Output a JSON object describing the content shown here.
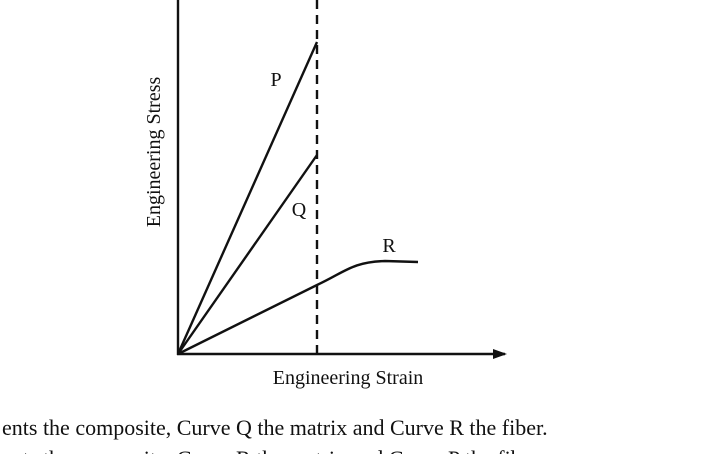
{
  "diagram": {
    "y_axis_label": "Engineering Stress",
    "x_axis_label": "Engineering Strain",
    "curves": [
      {
        "label": "P"
      },
      {
        "label": "Q"
      },
      {
        "label": "R"
      }
    ],
    "text_lines": [
      "ents the composite, Curve Q the matrix and Curve R the fiber.",
      "ents the composite, Curve R the matrix and Curve P the fiber."
    ]
  }
}
